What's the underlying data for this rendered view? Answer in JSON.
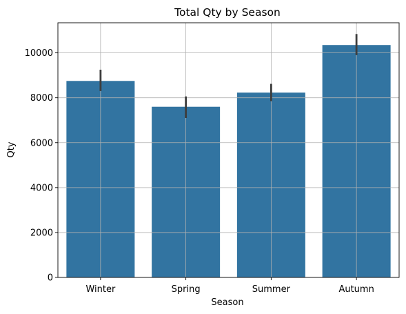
{
  "chart_data": {
    "type": "bar",
    "title": "Total Qty by Season",
    "xlabel": "Season",
    "ylabel": "Qty",
    "categories": [
      "Winter",
      "Spring",
      "Summer",
      "Autumn"
    ],
    "values": [
      8750,
      7600,
      8230,
      10350
    ],
    "error_bars": [
      {
        "low": 8300,
        "high": 9250
      },
      {
        "low": 7100,
        "high": 8060
      },
      {
        "low": 7850,
        "high": 8620
      },
      {
        "low": 9900,
        "high": 10840
      }
    ],
    "ylim": [
      0,
      11340
    ],
    "yticks": [
      0,
      2000,
      4000,
      6000,
      8000,
      10000
    ],
    "grid": true,
    "colors": {
      "bar": "#3274a1",
      "error_bar": "#3d3d3d",
      "grid": "#b0b0b0",
      "axis": "#000000"
    }
  }
}
